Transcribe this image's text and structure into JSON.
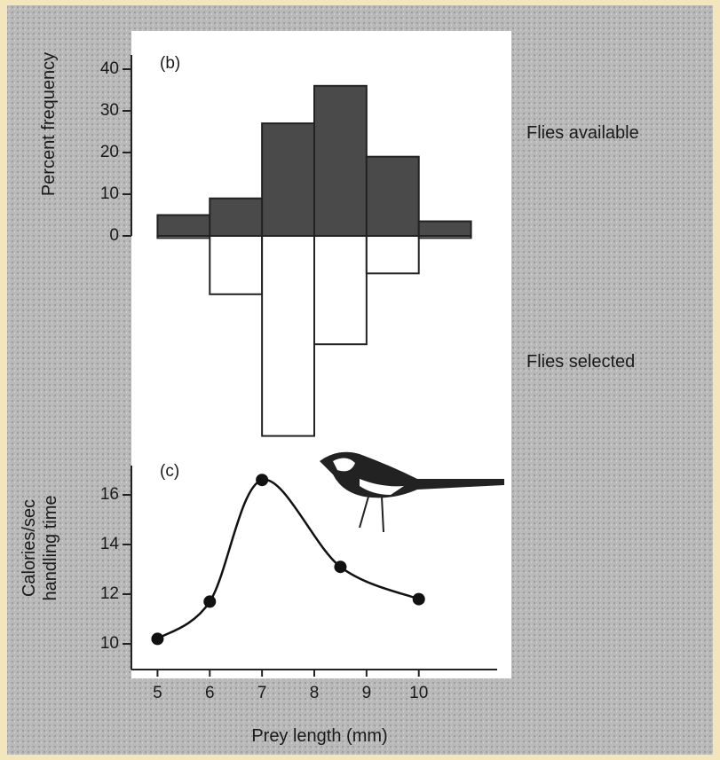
{
  "chart_data": [
    {
      "type": "histogram",
      "title": "(b)",
      "ylabel": "Percent frequency",
      "bins": [
        5,
        6,
        7,
        8,
        9,
        10,
        11
      ],
      "series": [
        {
          "name": "Flies available",
          "color": "#4a4a4a",
          "values": [
            5,
            9,
            27,
            36,
            19,
            3.5
          ]
        },
        {
          "name": "Flies selected",
          "color": "#ffffff",
          "values": [
            -0.5,
            -14,
            -48,
            -26,
            -9,
            -0.5
          ]
        }
      ],
      "xlim": [
        4.5,
        11.5
      ],
      "ylim": [
        -50,
        45
      ],
      "yticks": [
        0,
        10,
        20,
        30,
        40
      ]
    },
    {
      "type": "line",
      "title": "(c)",
      "ylabel": "Calories/sec handling time",
      "xlabel": "Prey length (mm)",
      "x": [
        5,
        6,
        7,
        8.5,
        10
      ],
      "values": [
        10.2,
        11.7,
        16.6,
        13.1,
        11.8
      ],
      "color": "#111111",
      "xlim": [
        4.5,
        11.5
      ],
      "xticks": [
        5,
        6,
        7,
        8,
        9,
        10
      ],
      "ylim": [
        9,
        17.2
      ],
      "yticks": [
        10,
        12,
        14,
        16
      ]
    }
  ]
}
